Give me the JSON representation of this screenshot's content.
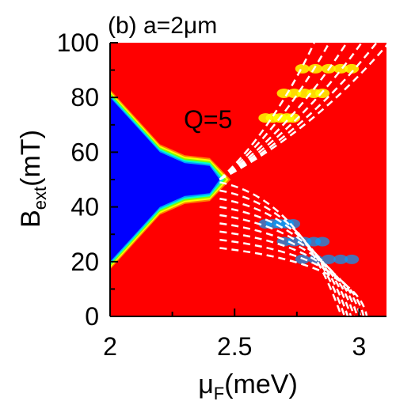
{
  "chart_data": {
    "type": "heatmap",
    "panel_label": "(b) a=2",
    "panel_unit_mu": "μ",
    "panel_unit_m": "m",
    "annotation": "Q=5",
    "x_label_base": "μ",
    "x_label_sub": "F",
    "x_label_unit": "(meV)",
    "y_label_base": "B",
    "y_label_sub": "ext",
    "y_label_unit": "(mT)",
    "x_range": [
      2.0,
      3.11
    ],
    "y_range": [
      0,
      100
    ],
    "x_ticks": [
      {
        "value": 2.0,
        "label": "2"
      },
      {
        "value": 2.5,
        "label": "2.5"
      },
      {
        "value": 3.0,
        "label": "3"
      }
    ],
    "x_minor_ticks": [
      2.25,
      2.75
    ],
    "y_ticks": [
      {
        "value": 0,
        "label": "0"
      },
      {
        "value": 20,
        "label": "20"
      },
      {
        "value": 40,
        "label": "40"
      },
      {
        "value": 60,
        "label": "60"
      },
      {
        "value": 80,
        "label": "80"
      },
      {
        "value": 100,
        "label": "100"
      }
    ],
    "y_minor_ticks": [
      10,
      30,
      50,
      70,
      90
    ],
    "colormap": [
      "#0000ff",
      "#00a0ff",
      "#00ffd0",
      "#80ff00",
      "#ffff00",
      "#ff8000",
      "#ff0000"
    ],
    "background_color": "#ff0000",
    "gap_boundary": {
      "crossing": {
        "x": 2.44,
        "y": 50
      },
      "upper_edge": [
        [
          2.0,
          80
        ],
        [
          2.1,
          70
        ],
        [
          2.2,
          60
        ],
        [
          2.3,
          56
        ],
        [
          2.4,
          55
        ]
      ],
      "lower_edge": [
        [
          2.0,
          20
        ],
        [
          2.1,
          30
        ],
        [
          2.2,
          40
        ],
        [
          2.3,
          44
        ],
        [
          2.4,
          45
        ]
      ]
    },
    "dashed_lines": {
      "color": "#ffffff",
      "upper_from": {
        "x": 2.44,
        "y": 50
      },
      "upper_end_x": [
        2.82,
        2.88,
        2.95,
        3.01,
        3.07,
        3.12
      ],
      "lower_to": {
        "x": 2.98,
        "y": 0
      },
      "lower_start_y": [
        49,
        46,
        43,
        40,
        37,
        34,
        31,
        28,
        25
      ]
    }
  }
}
